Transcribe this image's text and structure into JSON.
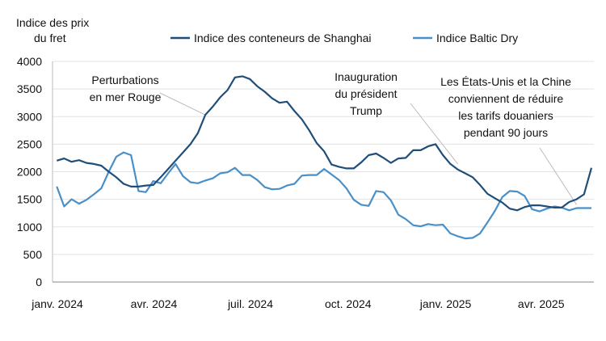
{
  "chart_data": {
    "type": "line",
    "ylabel_lines": [
      "Indice des prix",
      "du fret"
    ],
    "ylim": [
      0,
      4000
    ],
    "yticks": [
      0,
      500,
      1000,
      1500,
      2000,
      2500,
      3000,
      3500,
      4000
    ],
    "grid": "horizontal",
    "legend_placement": "top",
    "xticks": [
      {
        "date": "2024-01-01",
        "label": "janv. 2024"
      },
      {
        "date": "2024-04-01",
        "label": "avr. 2024"
      },
      {
        "date": "2024-07-01",
        "label": "juil. 2024"
      },
      {
        "date": "2024-10-01",
        "label": "oct. 2024"
      },
      {
        "date": "2025-01-01",
        "label": "janv. 2025"
      },
      {
        "date": "2025-04-01",
        "label": "avr. 2025"
      }
    ],
    "x": [
      "2024-01-05",
      "2024-01-12",
      "2024-01-19",
      "2024-01-26",
      "2024-02-02",
      "2024-02-09",
      "2024-02-16",
      "2024-02-23",
      "2024-03-01",
      "2024-03-08",
      "2024-03-15",
      "2024-03-22",
      "2024-03-29",
      "2024-04-05",
      "2024-04-12",
      "2024-04-19",
      "2024-04-26",
      "2024-05-03",
      "2024-05-10",
      "2024-05-17",
      "2024-05-24",
      "2024-05-31",
      "2024-06-07",
      "2024-06-14",
      "2024-06-21",
      "2024-06-28",
      "2024-07-05",
      "2024-07-12",
      "2024-07-19",
      "2024-07-26",
      "2024-08-02",
      "2024-08-09",
      "2024-08-16",
      "2024-08-23",
      "2024-08-30",
      "2024-09-06",
      "2024-09-13",
      "2024-09-20",
      "2024-09-27",
      "2024-10-04",
      "2024-10-11",
      "2024-10-18",
      "2024-10-25",
      "2024-11-01",
      "2024-11-08",
      "2024-11-15",
      "2024-11-22",
      "2024-11-29",
      "2024-12-06",
      "2024-12-13",
      "2024-12-20",
      "2024-12-27",
      "2025-01-03",
      "2025-01-10",
      "2025-01-17",
      "2025-01-24",
      "2025-01-31",
      "2025-02-07",
      "2025-02-14",
      "2025-02-21",
      "2025-02-28",
      "2025-03-07",
      "2025-03-14",
      "2025-03-21",
      "2025-03-28",
      "2025-04-04",
      "2025-04-11",
      "2025-04-18",
      "2025-04-25",
      "2025-05-02",
      "2025-05-09",
      "2025-05-16",
      "2025-05-23"
    ],
    "series": [
      {
        "name": "Indice des conteneurs de Shanghai",
        "color": "#1f4e79",
        "values": [
          2200,
          2240,
          2180,
          2210,
          2160,
          2140,
          2110,
          2000,
          1900,
          1780,
          1730,
          1730,
          1750,
          1760,
          1900,
          2050,
          2200,
          2350,
          2500,
          2700,
          3030,
          3180,
          3350,
          3480,
          3710,
          3730,
          3680,
          3550,
          3450,
          3330,
          3250,
          3270,
          3100,
          2950,
          2750,
          2520,
          2370,
          2130,
          2090,
          2060,
          2060,
          2170,
          2300,
          2330,
          2250,
          2160,
          2240,
          2250,
          2390,
          2390,
          2460,
          2500,
          2300,
          2140,
          2040,
          1970,
          1900,
          1760,
          1600,
          1520,
          1440,
          1330,
          1300,
          1360,
          1390,
          1390,
          1370,
          1350,
          1350,
          1450,
          1500,
          1590,
          2070
        ]
      },
      {
        "name": "Indice Baltic Dry",
        "color": "#4a90c8",
        "values": [
          1730,
          1370,
          1500,
          1420,
          1490,
          1590,
          1700,
          2000,
          2270,
          2350,
          2300,
          1650,
          1630,
          1830,
          1790,
          1970,
          2140,
          1920,
          1810,
          1790,
          1840,
          1880,
          1970,
          1990,
          2070,
          1940,
          1940,
          1850,
          1720,
          1680,
          1690,
          1750,
          1780,
          1930,
          1940,
          1940,
          2050,
          1950,
          1850,
          1700,
          1490,
          1400,
          1380,
          1650,
          1630,
          1480,
          1220,
          1140,
          1030,
          1010,
          1050,
          1030,
          1040,
          880,
          830,
          790,
          800,
          880,
          1080,
          1290,
          1540,
          1650,
          1640,
          1560,
          1320,
          1280,
          1330,
          1370,
          1350,
          1300,
          1340,
          1340,
          1340
        ]
      }
    ],
    "annotations": [
      {
        "lines": [
          "Perturbations",
          "en mer Rouge"
        ],
        "date": "2024-05-24",
        "value": 3030
      },
      {
        "lines": [
          "Inauguration",
          "du président",
          "Trump"
        ],
        "date": "2025-01-17",
        "value": 2140
      },
      {
        "lines": [
          "Les États-Unis et la Chine",
          "conviennent de réduire",
          "les tarifs douaniers",
          "pendant 90 jours"
        ],
        "date": "2025-05-09",
        "value": 1400
      }
    ]
  }
}
